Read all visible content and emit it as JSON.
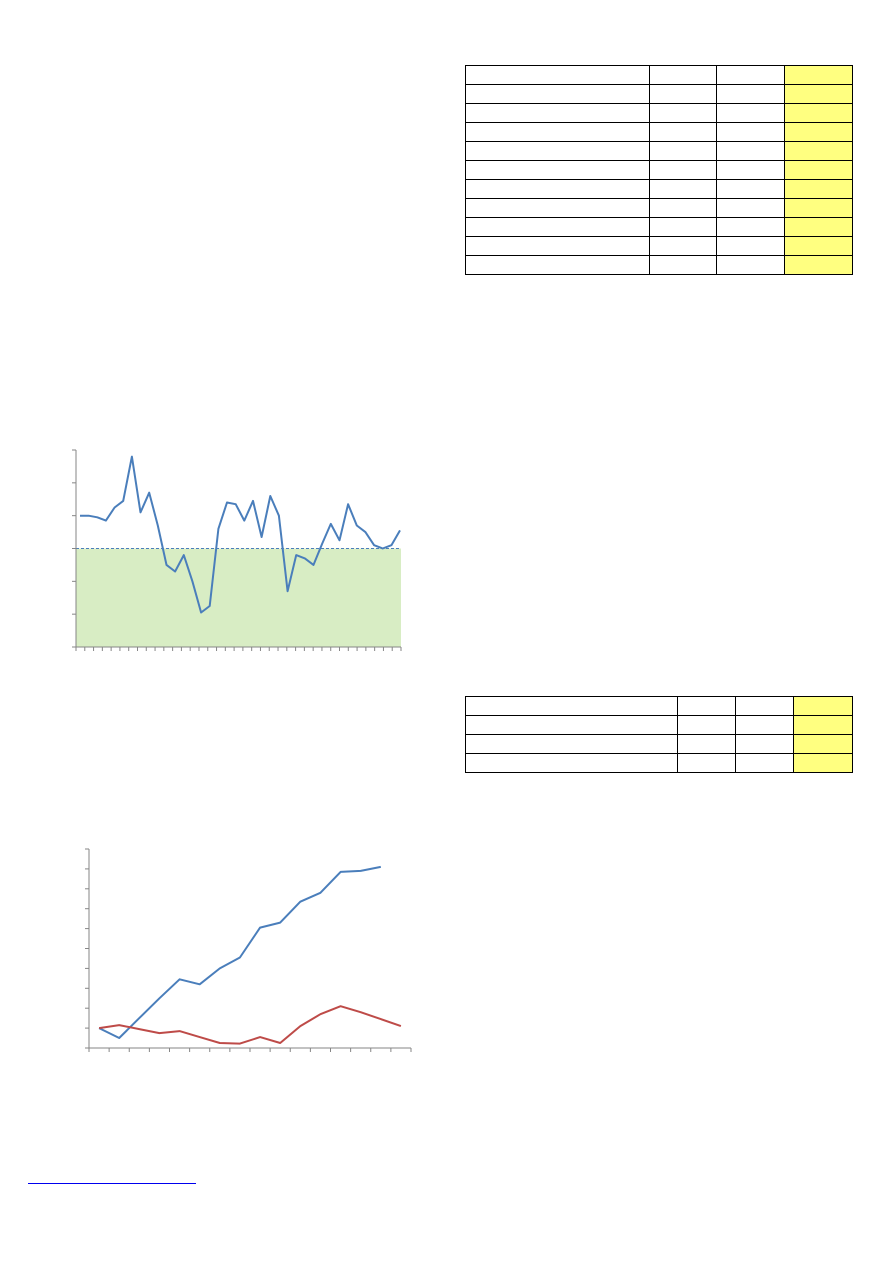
{
  "tables": [
    {
      "rows": 11,
      "cols": 4,
      "highlight_col": 3,
      "highlight_color": "#ffff80"
    },
    {
      "rows": 4,
      "cols": 4,
      "highlight_col": 3,
      "highlight_color": "#ffff80"
    }
  ],
  "chart_data": [
    {
      "type": "line",
      "ylim": [
        0,
        6
      ],
      "threshold": 3,
      "threshold_fill": "#d8edc4",
      "line_color": "#4a7ebb",
      "x_tick_count": 38,
      "y_tick_count": 7,
      "series": [
        {
          "values": [
            4.0,
            4.0,
            3.95,
            3.85,
            4.25,
            4.45,
            5.8,
            4.1,
            4.7,
            3.7,
            2.5,
            2.3,
            2.8,
            2.0,
            1.05,
            1.25,
            3.6,
            4.4,
            4.35,
            3.85,
            4.45,
            3.35,
            4.6,
            4.0,
            1.7,
            2.8,
            2.7,
            2.5,
            3.15,
            3.75,
            3.25,
            4.35,
            3.7,
            3.5,
            3.1,
            3.0,
            3.1,
            3.55
          ]
        }
      ]
    },
    {
      "type": "line",
      "ylim": [
        0,
        10
      ],
      "grid": false,
      "x_tick_count": 17,
      "y_tick_count": 11,
      "series": [
        {
          "color": "#4a7ebb",
          "values": [
            1.0,
            0.5,
            1.5,
            2.5,
            3.45,
            3.2,
            4.0,
            4.55,
            6.05,
            6.3,
            7.35,
            7.8,
            8.85,
            8.9,
            9.1
          ]
        },
        {
          "color": "#be4b48",
          "values": [
            1.0,
            1.15,
            0.95,
            0.75,
            0.85,
            0.55,
            0.25,
            0.22,
            0.55,
            0.25,
            1.1,
            1.7,
            2.1,
            1.8,
            1.45,
            1.1
          ]
        }
      ]
    }
  ]
}
